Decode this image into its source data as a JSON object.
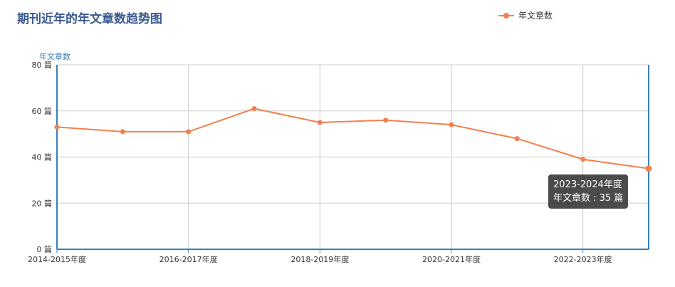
{
  "title": "期刊近年的年文章数趋势图",
  "legend": {
    "label": "年文章数"
  },
  "colors": {
    "line": "#f2804f",
    "axis": "#3a7fb5",
    "grid": "#cccccc"
  },
  "tooltip": {
    "line1": "2023-2024年度",
    "line2": "年文章数 : 35 篇"
  },
  "chart_data": {
    "type": "line",
    "ylabel": "年文章数",
    "ylim": [
      0,
      80
    ],
    "yticks": [
      0,
      20,
      40,
      60,
      80
    ],
    "ytick_suffix": " 篇",
    "xtick_labels": [
      "2014-2015年度",
      "2016-2017年度",
      "2018-2019年度",
      "2020-2021年度",
      "2022-2023年度"
    ],
    "series": [
      {
        "name": "年文章数",
        "x": [
          "2014-2015年度",
          "2015-2016年度",
          "2016-2017年度",
          "2017-2018年度",
          "2018-2019年度",
          "2019-2020年度",
          "2020-2021年度",
          "2021-2022年度",
          "2022-2023年度",
          "2023-2024年度"
        ],
        "values": [
          53,
          51,
          51,
          61,
          55,
          56,
          54,
          48,
          39,
          35
        ]
      }
    ],
    "grid": true,
    "legend_position": "top-right"
  }
}
